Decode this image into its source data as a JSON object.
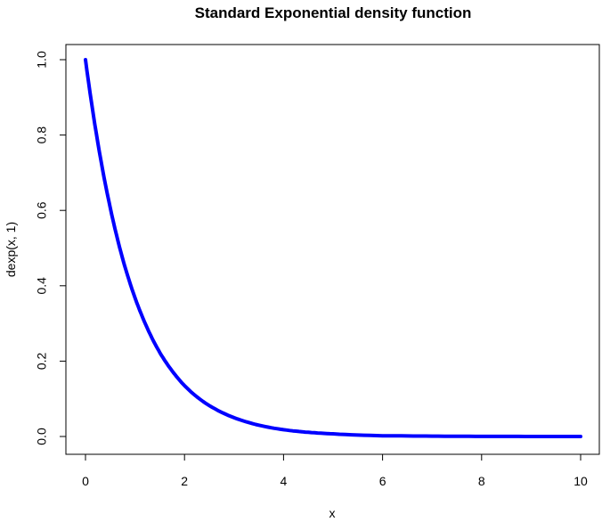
{
  "chart_data": {
    "type": "line",
    "title": "Standard Exponential density function",
    "xlabel": "x",
    "ylabel": "dexp(x, 1)",
    "xlim": [
      0,
      10
    ],
    "ylim": [
      0,
      1
    ],
    "x_ticks": [
      0,
      2,
      4,
      6,
      8,
      10
    ],
    "x_tick_labels": [
      "0",
      "2",
      "4",
      "6",
      "8",
      "10"
    ],
    "y_ticks": [
      0,
      0.2,
      0.4,
      0.6,
      0.8,
      1.0
    ],
    "y_tick_labels": [
      "0.0",
      "0.2",
      "0.4",
      "0.6",
      "0.8",
      "1.0"
    ],
    "grid": false,
    "legend": "none",
    "series": [
      {
        "color": "#0000ff",
        "x": [
          0,
          0.25,
          0.5,
          0.75,
          1,
          1.25,
          1.5,
          1.75,
          2,
          2.5,
          3,
          3.5,
          4,
          4.5,
          5,
          6,
          7,
          8,
          9,
          10
        ],
        "y": [
          1.0,
          0.779,
          0.607,
          0.472,
          0.368,
          0.287,
          0.223,
          0.174,
          0.135,
          0.082,
          0.05,
          0.03,
          0.018,
          0.011,
          0.007,
          0.002,
          0.001,
          0.0003,
          0.0001,
          5e-05
        ]
      }
    ]
  }
}
